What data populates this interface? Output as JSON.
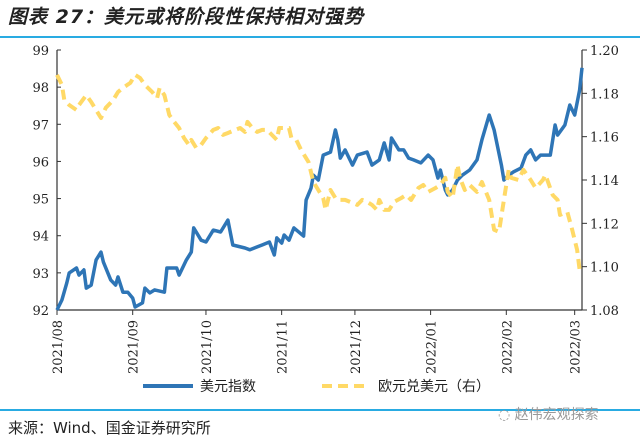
{
  "header": {
    "title": "图表 27：美元或将阶段性保持相对强势"
  },
  "footer": {
    "source": "来源：Wind、国金证券研究所",
    "watermark": "赵伟宏观探索"
  },
  "chart_data": {
    "type": "line",
    "title": "图表 27：美元或将阶段性保持相对强势",
    "x_ticks": [
      {
        "day": 0,
        "label": "2021/08"
      },
      {
        "day": 31,
        "label": "2021/09"
      },
      {
        "day": 61,
        "label": "2021/10"
      },
      {
        "day": 92,
        "label": "2021/11"
      },
      {
        "day": 122,
        "label": "2021/12"
      },
      {
        "day": 153,
        "label": "2022/01"
      },
      {
        "day": 184,
        "label": "2022/02"
      },
      {
        "day": 212,
        "label": "2022/03"
      }
    ],
    "xlim": [
      0,
      215
    ],
    "y_left": {
      "range": [
        92,
        99
      ],
      "ticks": [
        "92",
        "93",
        "94",
        "95",
        "96",
        "97",
        "98",
        "99"
      ]
    },
    "y_right": {
      "range": [
        1.08,
        1.2
      ],
      "ticks": [
        "1.08",
        "1.10",
        "1.12",
        "1.14",
        "1.16",
        "1.18",
        "1.20"
      ]
    },
    "legend_position": "bottom",
    "series": [
      {
        "name": "美元指数",
        "axis": "left",
        "color": "#2E75B6",
        "style": "solid",
        "points": [
          [
            0,
            92.0
          ],
          [
            2,
            92.27
          ],
          [
            4,
            92.73
          ],
          [
            5,
            93.0
          ],
          [
            8,
            93.13
          ],
          [
            9,
            92.94
          ],
          [
            11,
            93.08
          ],
          [
            12,
            92.59
          ],
          [
            14,
            92.67
          ],
          [
            16,
            93.35
          ],
          [
            18,
            93.56
          ],
          [
            19,
            93.29
          ],
          [
            22,
            92.81
          ],
          [
            24,
            92.67
          ],
          [
            25,
            92.89
          ],
          [
            27,
            92.48
          ],
          [
            29,
            92.48
          ],
          [
            31,
            92.32
          ],
          [
            32,
            92.08
          ],
          [
            35,
            92.19
          ],
          [
            36,
            92.59
          ],
          [
            38,
            92.46
          ],
          [
            40,
            92.54
          ],
          [
            44,
            92.48
          ],
          [
            45,
            93.13
          ],
          [
            49,
            93.13
          ],
          [
            50,
            92.94
          ],
          [
            53,
            93.35
          ],
          [
            55,
            93.56
          ],
          [
            56,
            94.21
          ],
          [
            59,
            93.88
          ],
          [
            61,
            93.83
          ],
          [
            64,
            94.15
          ],
          [
            67,
            94.1
          ],
          [
            70,
            94.42
          ],
          [
            72,
            93.75
          ],
          [
            77,
            93.67
          ],
          [
            79,
            93.62
          ],
          [
            82,
            93.7
          ],
          [
            84,
            93.75
          ],
          [
            87,
            93.83
          ],
          [
            89,
            93.48
          ],
          [
            90,
            93.94
          ],
          [
            92,
            93.8
          ],
          [
            93,
            94.02
          ],
          [
            95,
            93.88
          ],
          [
            97,
            94.21
          ],
          [
            101,
            93.99
          ],
          [
            102,
            94.96
          ],
          [
            104,
            95.28
          ],
          [
            105,
            95.63
          ],
          [
            107,
            95.5
          ],
          [
            109,
            96.17
          ],
          [
            112,
            96.25
          ],
          [
            114,
            96.85
          ],
          [
            115,
            96.58
          ],
          [
            116,
            96.09
          ],
          [
            118,
            96.31
          ],
          [
            121,
            95.9
          ],
          [
            123,
            96.17
          ],
          [
            127,
            96.25
          ],
          [
            129,
            95.9
          ],
          [
            132,
            96.04
          ],
          [
            134,
            96.5
          ],
          [
            136,
            96.04
          ],
          [
            137,
            96.63
          ],
          [
            140,
            96.31
          ],
          [
            142,
            96.31
          ],
          [
            144,
            96.09
          ],
          [
            146,
            96.04
          ],
          [
            149,
            95.96
          ],
          [
            152,
            96.17
          ],
          [
            154,
            96.04
          ],
          [
            156,
            95.55
          ],
          [
            157,
            95.77
          ],
          [
            159,
            95.23
          ],
          [
            160,
            95.1
          ],
          [
            162,
            95.23
          ],
          [
            164,
            95.5
          ],
          [
            166,
            95.63
          ],
          [
            169,
            95.77
          ],
          [
            172,
            96.04
          ],
          [
            174,
            96.58
          ],
          [
            177,
            97.25
          ],
          [
            179,
            96.85
          ],
          [
            182,
            95.9
          ],
          [
            183,
            95.5
          ],
          [
            185,
            95.63
          ],
          [
            187,
            95.72
          ],
          [
            190,
            95.82
          ],
          [
            192,
            96.17
          ],
          [
            194,
            96.31
          ],
          [
            196,
            96.04
          ],
          [
            198,
            96.17
          ],
          [
            202,
            96.17
          ],
          [
            204,
            96.98
          ],
          [
            205,
            96.71
          ],
          [
            208,
            96.98
          ],
          [
            210,
            97.52
          ],
          [
            212,
            97.25
          ],
          [
            214,
            97.92
          ],
          [
            215,
            98.52
          ]
        ]
      },
      {
        "name": "欧元兑美元（右）",
        "axis": "right",
        "color": "#FFD966",
        "style": "dashed",
        "points": [
          [
            0,
            1.1885
          ],
          [
            2,
            1.1839
          ],
          [
            3,
            1.1769
          ],
          [
            5,
            1.1746
          ],
          [
            8,
            1.1723
          ],
          [
            9,
            1.1746
          ],
          [
            12,
            1.1792
          ],
          [
            14,
            1.176
          ],
          [
            16,
            1.1723
          ],
          [
            18,
            1.1686
          ],
          [
            20,
            1.1733
          ],
          [
            23,
            1.1769
          ],
          [
            25,
            1.1806
          ],
          [
            27,
            1.1825
          ],
          [
            30,
            1.1848
          ],
          [
            32,
            1.1885
          ],
          [
            34,
            1.1871
          ],
          [
            36,
            1.1839
          ],
          [
            39,
            1.1806
          ],
          [
            41,
            1.1778
          ],
          [
            42,
            1.1825
          ],
          [
            44,
            1.1792
          ],
          [
            46,
            1.17
          ],
          [
            48,
            1.1668
          ],
          [
            50,
            1.164
          ],
          [
            52,
            1.1594
          ],
          [
            54,
            1.1562
          ],
          [
            55,
            1.1585
          ],
          [
            57,
            1.1548
          ],
          [
            59,
            1.1562
          ],
          [
            61,
            1.1594
          ],
          [
            64,
            1.1631
          ],
          [
            66,
            1.164
          ],
          [
            68,
            1.1608
          ],
          [
            70,
            1.1617
          ],
          [
            73,
            1.1631
          ],
          [
            75,
            1.164
          ],
          [
            77,
            1.1622
          ],
          [
            78,
            1.1668
          ],
          [
            80,
            1.164
          ],
          [
            82,
            1.1622
          ],
          [
            84,
            1.1631
          ],
          [
            86,
            1.1631
          ],
          [
            88,
            1.1608
          ],
          [
            90,
            1.1585
          ],
          [
            91,
            1.164
          ],
          [
            93,
            1.164
          ],
          [
            95,
            1.164
          ],
          [
            96,
            1.1594
          ],
          [
            98,
            1.1585
          ],
          [
            100,
            1.1538
          ],
          [
            103,
            1.1483
          ],
          [
            105,
            1.1391
          ],
          [
            107,
            1.1354
          ],
          [
            109,
            1.1317
          ],
          [
            110,
            1.1262
          ],
          [
            112,
            1.1354
          ],
          [
            114,
            1.1317
          ],
          [
            115,
            1.1308
          ],
          [
            118,
            1.1308
          ],
          [
            120,
            1.1299
          ],
          [
            123,
            1.1285
          ],
          [
            125,
            1.1308
          ],
          [
            127,
            1.1299
          ],
          [
            129,
            1.1285
          ],
          [
            131,
            1.1262
          ],
          [
            132,
            1.1308
          ],
          [
            134,
            1.1262
          ],
          [
            136,
            1.1262
          ],
          [
            138,
            1.1299
          ],
          [
            141,
            1.1317
          ],
          [
            143,
            1.1331
          ],
          [
            145,
            1.1308
          ],
          [
            148,
            1.1363
          ],
          [
            150,
            1.1377
          ],
          [
            152,
            1.1345
          ],
          [
            155,
            1.1363
          ],
          [
            157,
            1.1377
          ],
          [
            159,
            1.141
          ],
          [
            160,
            1.1345
          ],
          [
            162,
            1.1317
          ],
          [
            164,
            1.147
          ],
          [
            165,
            1.141
          ],
          [
            167,
            1.1354
          ],
          [
            169,
            1.1377
          ],
          [
            172,
            1.1345
          ],
          [
            174,
            1.1391
          ],
          [
            177,
            1.1308
          ],
          [
            179,
            1.117
          ],
          [
            181,
            1.1161
          ],
          [
            183,
            1.1308
          ],
          [
            185,
            1.1447
          ],
          [
            186,
            1.141
          ],
          [
            189,
            1.14
          ],
          [
            191,
            1.1447
          ],
          [
            194,
            1.14
          ],
          [
            196,
            1.1363
          ],
          [
            199,
            1.14
          ],
          [
            200,
            1.1424
          ],
          [
            203,
            1.1331
          ],
          [
            205,
            1.1308
          ],
          [
            206,
            1.1239
          ],
          [
            209,
            1.1253
          ],
          [
            211,
            1.117
          ],
          [
            213,
            1.1078
          ],
          [
            214,
            1.0986
          ]
        ]
      }
    ]
  }
}
